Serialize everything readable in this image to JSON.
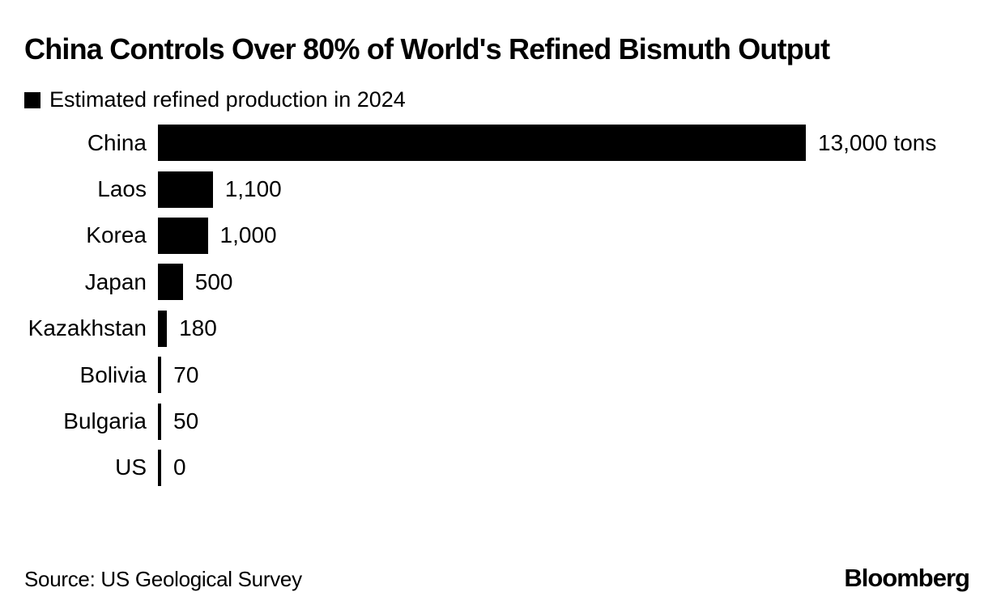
{
  "title": "China Controls Over 80% of World's Refined Bismuth Output",
  "legend": {
    "label": "Estimated refined production in 2024",
    "marker_color": "#000000"
  },
  "footer": {
    "source": "Source: US Geological Survey",
    "brand": "Bloomberg"
  },
  "colors": {
    "bar": "#000000",
    "background": "#ffffff",
    "text": "#000000"
  },
  "chart_data": {
    "type": "bar",
    "orientation": "horizontal",
    "title": "China Controls Over 80% of World's Refined Bismuth Output",
    "legend_label": "Estimated refined production in 2024",
    "unit": "tons",
    "categories": [
      "China",
      "Laos",
      "Korea",
      "Japan",
      "Kazakhstan",
      "Bolivia",
      "Bulgaria",
      "US"
    ],
    "values": [
      13000,
      1100,
      1000,
      500,
      180,
      70,
      50,
      0
    ],
    "value_labels": [
      "13,000 tons",
      "1,100",
      "1,000",
      "500",
      "180",
      "70",
      "50",
      "0"
    ],
    "xlim": [
      0,
      13000
    ],
    "grid": false,
    "legend_position": "top-left",
    "source": "US Geological Survey"
  }
}
